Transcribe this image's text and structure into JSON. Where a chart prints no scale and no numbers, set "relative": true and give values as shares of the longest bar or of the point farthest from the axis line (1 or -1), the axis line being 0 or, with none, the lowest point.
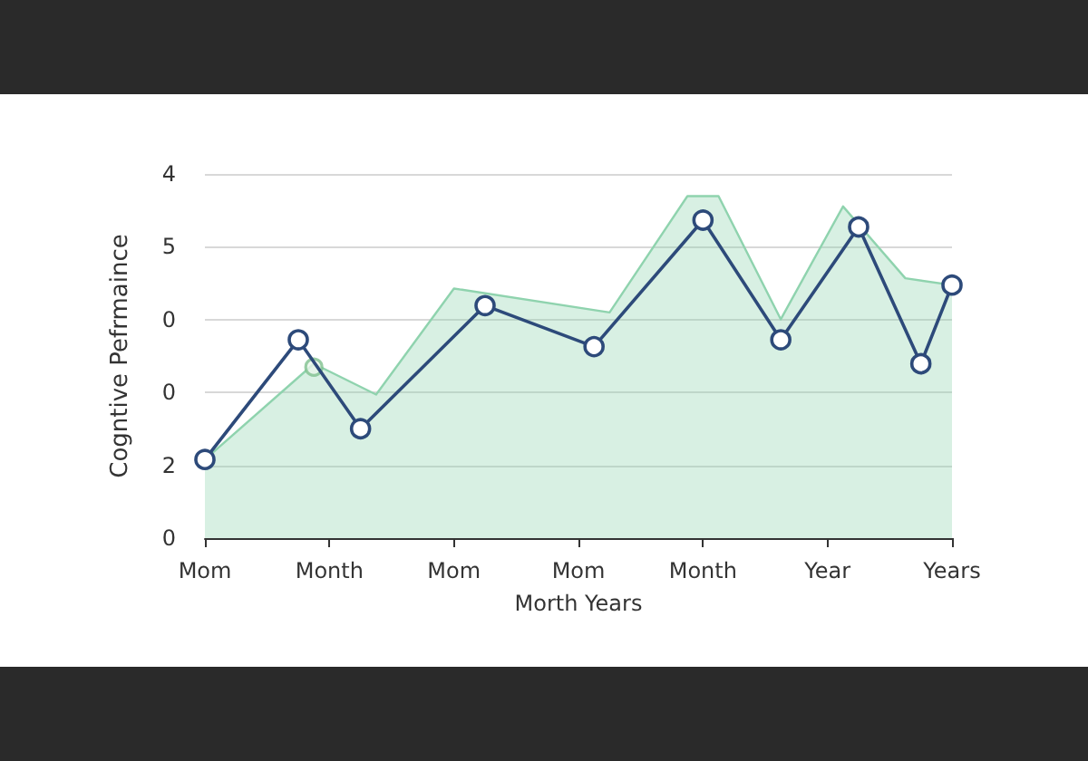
{
  "chart_data": {
    "type": "line",
    "xlabel": "Morth Years",
    "ylabel": "Cogntive Pefrmaince",
    "relative": true,
    "categories": [
      "Mom",
      null,
      null,
      null,
      null,
      null,
      null,
      null,
      "Month",
      null,
      null,
      null,
      null,
      null,
      null,
      null,
      "Mom",
      null,
      null,
      null,
      null,
      null,
      null,
      null,
      "Mom",
      null,
      null,
      null,
      null,
      null,
      null,
      null,
      "Month",
      null,
      null,
      null,
      null,
      null,
      null,
      null,
      "Year",
      null,
      null,
      null,
      null,
      null,
      null,
      null,
      "Years"
    ],
    "annotations": [
      "4",
      "5",
      "0",
      "0",
      "2",
      "0"
    ],
    "grid": "y",
    "series": [
      {
        "type": "area",
        "color": "#8fd3ae",
        "values": [
          0.23,
          null,
          null,
          null,
          null,
          null,
          null,
          0.51,
          null,
          null,
          null,
          0.42,
          null,
          null,
          null,
          null,
          0.73,
          null,
          null,
          null,
          null,
          null,
          null,
          null,
          null,
          null,
          0.66,
          null,
          null,
          null,
          null,
          1,
          null,
          1,
          null,
          null,
          null,
          0.64,
          null,
          null,
          null,
          0.97,
          null,
          null,
          null,
          0.76,
          null,
          null,
          0.74
        ]
      },
      {
        "color": "#2d4a7a",
        "marker": "circle",
        "values": [
          0.23,
          null,
          null,
          null,
          null,
          null,
          0.58,
          null,
          null,
          null,
          0.32,
          null,
          null,
          null,
          null,
          null,
          null,
          null,
          0.68,
          null,
          null,
          null,
          null,
          null,
          null,
          0.56,
          null,
          null,
          null,
          null,
          null,
          null,
          0.93,
          null,
          null,
          null,
          null,
          0.58,
          null,
          null,
          null,
          null,
          0.91,
          null,
          null,
          null,
          0.51,
          null,
          0.74
        ]
      },
      {
        "type": "scatter",
        "color": "#7fc08f",
        "marker": "circle",
        "values": [
          null,
          null,
          null,
          null,
          null,
          null,
          null,
          0.5,
          null,
          null,
          null,
          null,
          null,
          null,
          null,
          null,
          null,
          null,
          null,
          null,
          null,
          null,
          null,
          null,
          null,
          null,
          null,
          null,
          null,
          null,
          null,
          null,
          null,
          null,
          null,
          null,
          null,
          null,
          null,
          null,
          null,
          null,
          null,
          null,
          null,
          null,
          null,
          null,
          null
        ]
      }
    ]
  }
}
